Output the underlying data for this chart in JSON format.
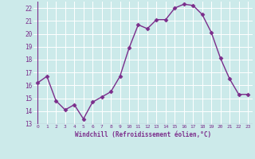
{
  "x": [
    0,
    1,
    2,
    3,
    4,
    5,
    6,
    7,
    8,
    9,
    10,
    11,
    12,
    13,
    14,
    15,
    16,
    17,
    18,
    19,
    20,
    21,
    22,
    23
  ],
  "y": [
    16.2,
    16.7,
    14.8,
    14.1,
    14.5,
    13.4,
    14.7,
    15.1,
    15.5,
    16.7,
    18.9,
    20.7,
    20.4,
    21.1,
    21.1,
    22.0,
    22.3,
    22.2,
    21.5,
    20.1,
    18.1,
    16.5,
    15.3,
    15.3
  ],
  "line_color": "#7b2d8b",
  "bg_color": "#cceaea",
  "grid_color": "#aadddd",
  "xlabel": "Windchill (Refroidissement éolien,°C)",
  "xlabel_color": "#7b2d8b",
  "tick_color": "#7b2d8b",
  "ylim": [
    13,
    22.5
  ],
  "xlim": [
    -0.5,
    23.5
  ],
  "yticks": [
    13,
    14,
    15,
    16,
    17,
    18,
    19,
    20,
    21,
    22
  ],
  "xticks": [
    0,
    1,
    2,
    3,
    4,
    5,
    6,
    7,
    8,
    9,
    10,
    11,
    12,
    13,
    14,
    15,
    16,
    17,
    18,
    19,
    20,
    21,
    22,
    23
  ],
  "marker": "D",
  "marker_size": 2.5,
  "linewidth": 1.0
}
